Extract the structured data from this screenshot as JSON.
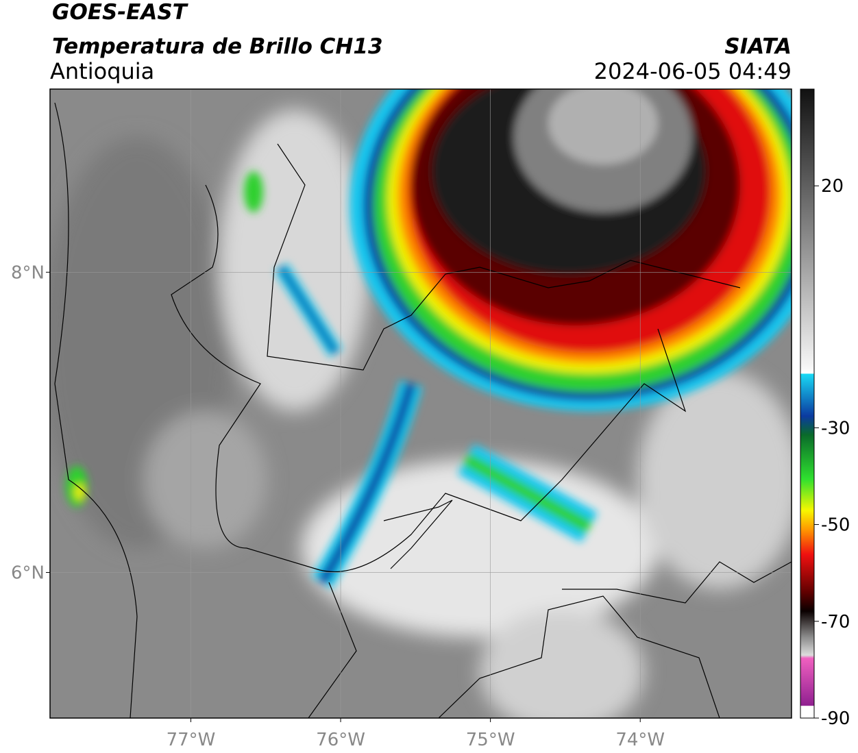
{
  "map": {
    "title": "GOES-EAST",
    "subtitle": "Temperatura de Brillo CH13",
    "region": "Antioquia",
    "source": "SIATA",
    "datetime": "2024-06-05 04:49",
    "xlim": [
      -77.94,
      -72.99
    ],
    "ylim": [
      5.03,
      9.22
    ],
    "xticks": [
      {
        "value": -77,
        "label": "77°W"
      },
      {
        "value": -76,
        "label": "76°W"
      },
      {
        "value": -75,
        "label": "75°W"
      },
      {
        "value": -74,
        "label": "74°W"
      }
    ],
    "yticks": [
      {
        "value": 8,
        "label": "8°N"
      },
      {
        "value": 6,
        "label": "6°N"
      }
    ],
    "grid": true,
    "colorbar": {
      "lim": [
        -90,
        40
      ],
      "ticks": [
        20,
        -30,
        -50,
        -70,
        -90
      ]
    }
  }
}
